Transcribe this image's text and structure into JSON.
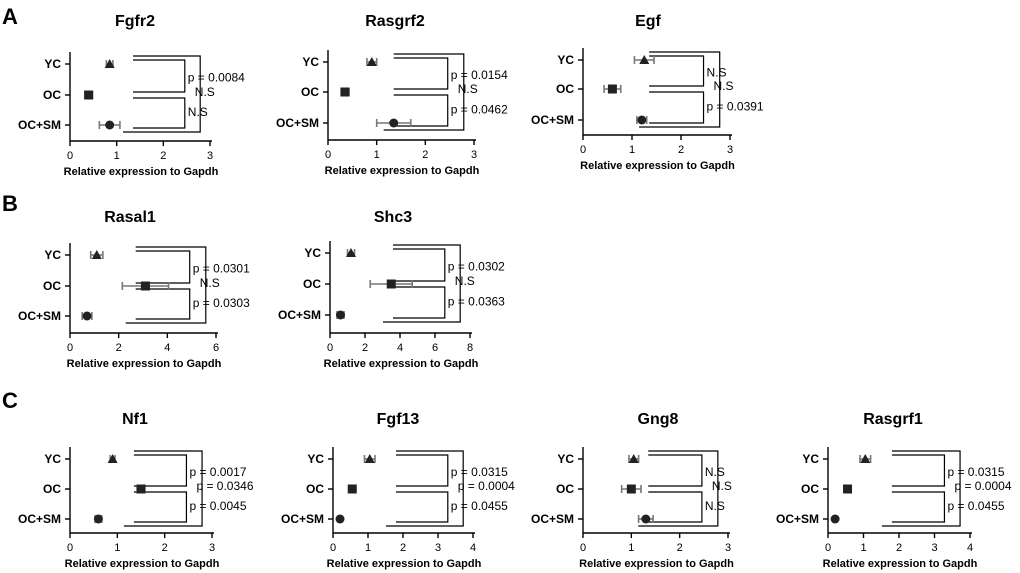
{
  "panel_letters": [
    "A",
    "B",
    "C"
  ],
  "chart_data": [
    {
      "panel": "A",
      "type": "scatter",
      "title": "Fgfr2",
      "categories": [
        "YC",
        "OC",
        "OC+SM"
      ],
      "markers": [
        "triangle",
        "square",
        "circle"
      ],
      "means": [
        0.85,
        0.4,
        0.85
      ],
      "errors": [
        0.07,
        0.08,
        0.22
      ],
      "xlim": [
        0,
        3
      ],
      "xticks": [
        0,
        1,
        2,
        3
      ],
      "xlabel": "Relative expression to Gapdh",
      "comparisons": [
        {
          "pair": [
            "YC",
            "OC"
          ],
          "label": "p = 0.0084"
        },
        {
          "pair": [
            "YC",
            "OC+SM"
          ],
          "label": "N.S"
        },
        {
          "pair": [
            "OC",
            "OC+SM"
          ],
          "label": "N.S"
        }
      ]
    },
    {
      "panel": "A",
      "type": "scatter",
      "title": "Rasgrf2",
      "categories": [
        "YC",
        "OC",
        "OC+SM"
      ],
      "markers": [
        "triangle",
        "square",
        "circle"
      ],
      "means": [
        0.9,
        0.35,
        1.35
      ],
      "errors": [
        0.1,
        0.08,
        0.35
      ],
      "xlim": [
        0,
        3
      ],
      "xticks": [
        0,
        1,
        2,
        3
      ],
      "xlabel": "Relative expression to Gapdh",
      "comparisons": [
        {
          "pair": [
            "YC",
            "OC"
          ],
          "label": "p = 0.0154"
        },
        {
          "pair": [
            "YC",
            "OC+SM"
          ],
          "label": "N.S"
        },
        {
          "pair": [
            "OC",
            "OC+SM"
          ],
          "label": "p = 0.0462"
        }
      ]
    },
    {
      "panel": "A",
      "type": "scatter",
      "title": "Egf",
      "categories": [
        "YC",
        "OC",
        "OC+SM"
      ],
      "markers": [
        "triangle",
        "square",
        "circle"
      ],
      "means": [
        1.25,
        0.6,
        1.2
      ],
      "errors": [
        0.2,
        0.17,
        0.1
      ],
      "xlim": [
        0,
        3
      ],
      "xticks": [
        0,
        1,
        2,
        3
      ],
      "xlabel": "Relative expression to Gapdh",
      "comparisons": [
        {
          "pair": [
            "YC",
            "OC"
          ],
          "label": "N.S"
        },
        {
          "pair": [
            "YC",
            "OC+SM"
          ],
          "label": "N.S"
        },
        {
          "pair": [
            "OC",
            "OC+SM"
          ],
          "label": "p = 0.0391"
        }
      ]
    },
    {
      "panel": "B",
      "type": "scatter",
      "title": "Rasal1",
      "categories": [
        "YC",
        "OC",
        "OC+SM"
      ],
      "markers": [
        "triangle",
        "square",
        "circle"
      ],
      "means": [
        1.1,
        3.1,
        0.7
      ],
      "errors": [
        0.25,
        0.95,
        0.2
      ],
      "xlim": [
        0,
        6
      ],
      "xticks": [
        0,
        2,
        4,
        6
      ],
      "xlabel": "Relative expression to Gapdh",
      "comparisons": [
        {
          "pair": [
            "YC",
            "OC"
          ],
          "label": "p = 0.0301"
        },
        {
          "pair": [
            "YC",
            "OC+SM"
          ],
          "label": "N.S"
        },
        {
          "pair": [
            "OC",
            "OC+SM"
          ],
          "label": "p = 0.0303"
        }
      ]
    },
    {
      "panel": "B",
      "type": "scatter",
      "title": "Shc3",
      "categories": [
        "YC",
        "OC",
        "OC+SM"
      ],
      "markers": [
        "triangle",
        "square",
        "circle"
      ],
      "means": [
        1.2,
        3.5,
        0.6
      ],
      "errors": [
        0.2,
        1.2,
        0.2
      ],
      "xlim": [
        0,
        8
      ],
      "xticks": [
        0,
        2,
        4,
        6,
        8
      ],
      "xlabel": "Relative expression to Gapdh",
      "comparisons": [
        {
          "pair": [
            "YC",
            "OC"
          ],
          "label": "p = 0.0302"
        },
        {
          "pair": [
            "YC",
            "OC+SM"
          ],
          "label": "N.S"
        },
        {
          "pair": [
            "OC",
            "OC+SM"
          ],
          "label": "p = 0.0363"
        }
      ]
    },
    {
      "panel": "C",
      "type": "scatter",
      "title": "Nf1",
      "categories": [
        "YC",
        "OC",
        "OC+SM"
      ],
      "markers": [
        "triangle",
        "square",
        "circle"
      ],
      "means": [
        0.9,
        1.5,
        0.6
      ],
      "errors": [
        0.05,
        0.08,
        0.07
      ],
      "xlim": [
        0,
        3
      ],
      "xticks": [
        0,
        1,
        2,
        3
      ],
      "xlabel": "Relative expression to Gapdh",
      "comparisons": [
        {
          "pair": [
            "YC",
            "OC"
          ],
          "label": "p = 0.0017"
        },
        {
          "pair": [
            "YC",
            "OC+SM"
          ],
          "label": "p = 0.0346"
        },
        {
          "pair": [
            "OC",
            "OC+SM"
          ],
          "label": "p = 0.0045"
        }
      ]
    },
    {
      "panel": "C",
      "type": "scatter",
      "title": "Fgf13",
      "categories": [
        "YC",
        "OC",
        "OC+SM"
      ],
      "markers": [
        "triangle",
        "square",
        "circle"
      ],
      "means": [
        1.05,
        0.55,
        0.2
      ],
      "errors": [
        0.15,
        0.1,
        0.05
      ],
      "xlim": [
        0,
        4
      ],
      "xticks": [
        0,
        1,
        2,
        3,
        4
      ],
      "xlabel": "Relative expression to Gapdh",
      "comparisons": [
        {
          "pair": [
            "YC",
            "OC"
          ],
          "label": "p = 0.0315"
        },
        {
          "pair": [
            "YC",
            "OC+SM"
          ],
          "label": "p = 0.0004"
        },
        {
          "pair": [
            "OC",
            "OC+SM"
          ],
          "label": "p = 0.0455"
        }
      ]
    },
    {
      "panel": "C",
      "type": "scatter",
      "title": "Gng8",
      "categories": [
        "YC",
        "OC",
        "OC+SM"
      ],
      "markers": [
        "triangle",
        "square",
        "circle"
      ],
      "means": [
        1.05,
        1.0,
        1.3
      ],
      "errors": [
        0.1,
        0.2,
        0.15
      ],
      "xlim": [
        0,
        3
      ],
      "xticks": [
        0,
        1,
        2,
        3
      ],
      "xlabel": "Relative expression to Gapdh",
      "comparisons": [
        {
          "pair": [
            "YC",
            "OC"
          ],
          "label": "N.S"
        },
        {
          "pair": [
            "YC",
            "OC+SM"
          ],
          "label": "N.S"
        },
        {
          "pair": [
            "OC",
            "OC+SM"
          ],
          "label": "N.S"
        }
      ]
    },
    {
      "panel": "C",
      "type": "scatter",
      "title": "Rasgrf1",
      "categories": [
        "YC",
        "OC",
        "OC+SM"
      ],
      "markers": [
        "triangle",
        "square",
        "circle"
      ],
      "means": [
        1.05,
        0.55,
        0.2
      ],
      "errors": [
        0.15,
        0.1,
        0.05
      ],
      "xlim": [
        0,
        4
      ],
      "xticks": [
        0,
        1,
        2,
        3,
        4
      ],
      "xlabel": "Relative expression to Gapdh",
      "comparisons": [
        {
          "pair": [
            "YC",
            "OC"
          ],
          "label": "p = 0.0315"
        },
        {
          "pair": [
            "YC",
            "OC+SM"
          ],
          "label": "p = 0.0004"
        },
        {
          "pair": [
            "OC",
            "OC+SM"
          ],
          "label": "p = 0.0455"
        }
      ]
    }
  ]
}
